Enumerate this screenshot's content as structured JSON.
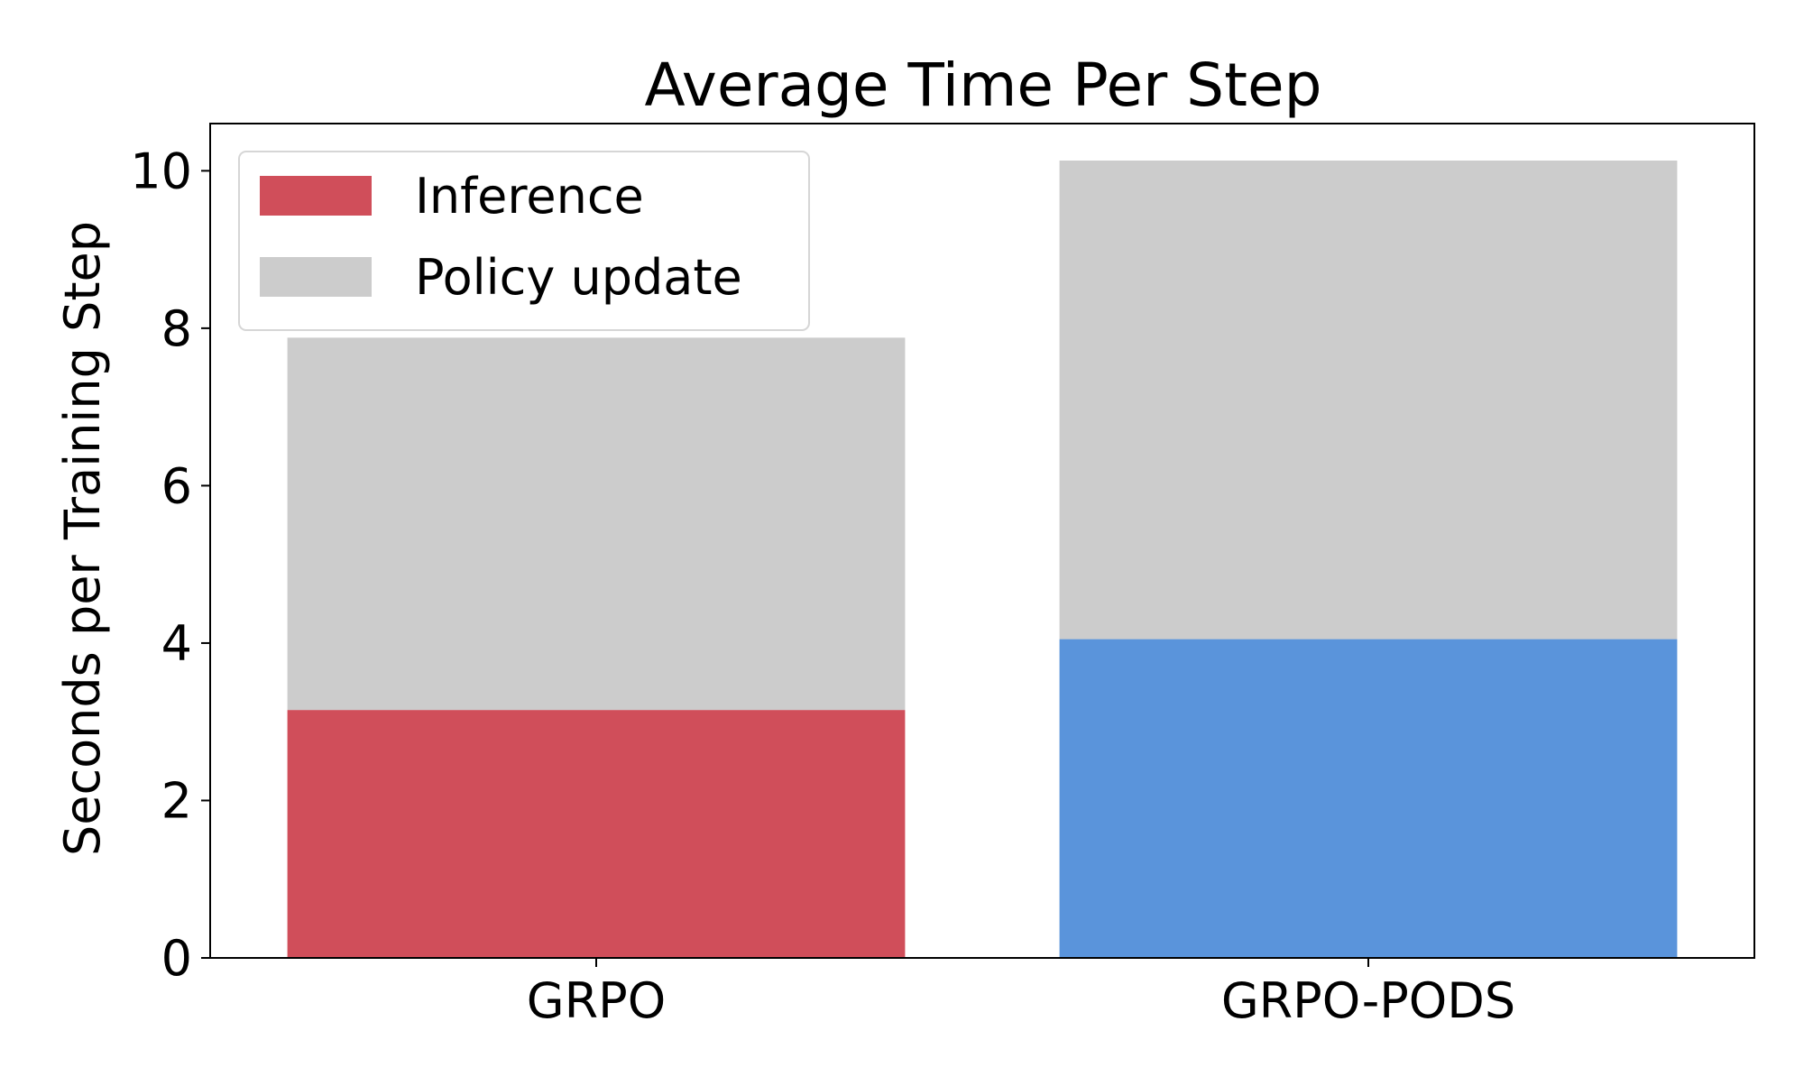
{
  "chart_data": {
    "type": "bar",
    "stacked": true,
    "title": "Average Time Per Step",
    "xlabel": "",
    "ylabel": "Seconds per Training Step",
    "categories": [
      "GRPO",
      "GRPO-PODS"
    ],
    "ylim": [
      0,
      10.6
    ],
    "yticks": [
      "0",
      "2",
      "4",
      "6",
      "8",
      "10"
    ],
    "grid": false,
    "legend_position": "top-left",
    "series": [
      {
        "name": "Inference",
        "values": [
          3.15,
          4.05
        ],
        "colors": [
          "#d04e5a",
          "#5a94db"
        ],
        "legend_color": "#d04e5a"
      },
      {
        "name": "Policy update",
        "values": [
          4.73,
          6.08
        ],
        "colors": [
          "#cccccc",
          "#cccccc"
        ],
        "legend_color": "#cccccc"
      }
    ]
  }
}
